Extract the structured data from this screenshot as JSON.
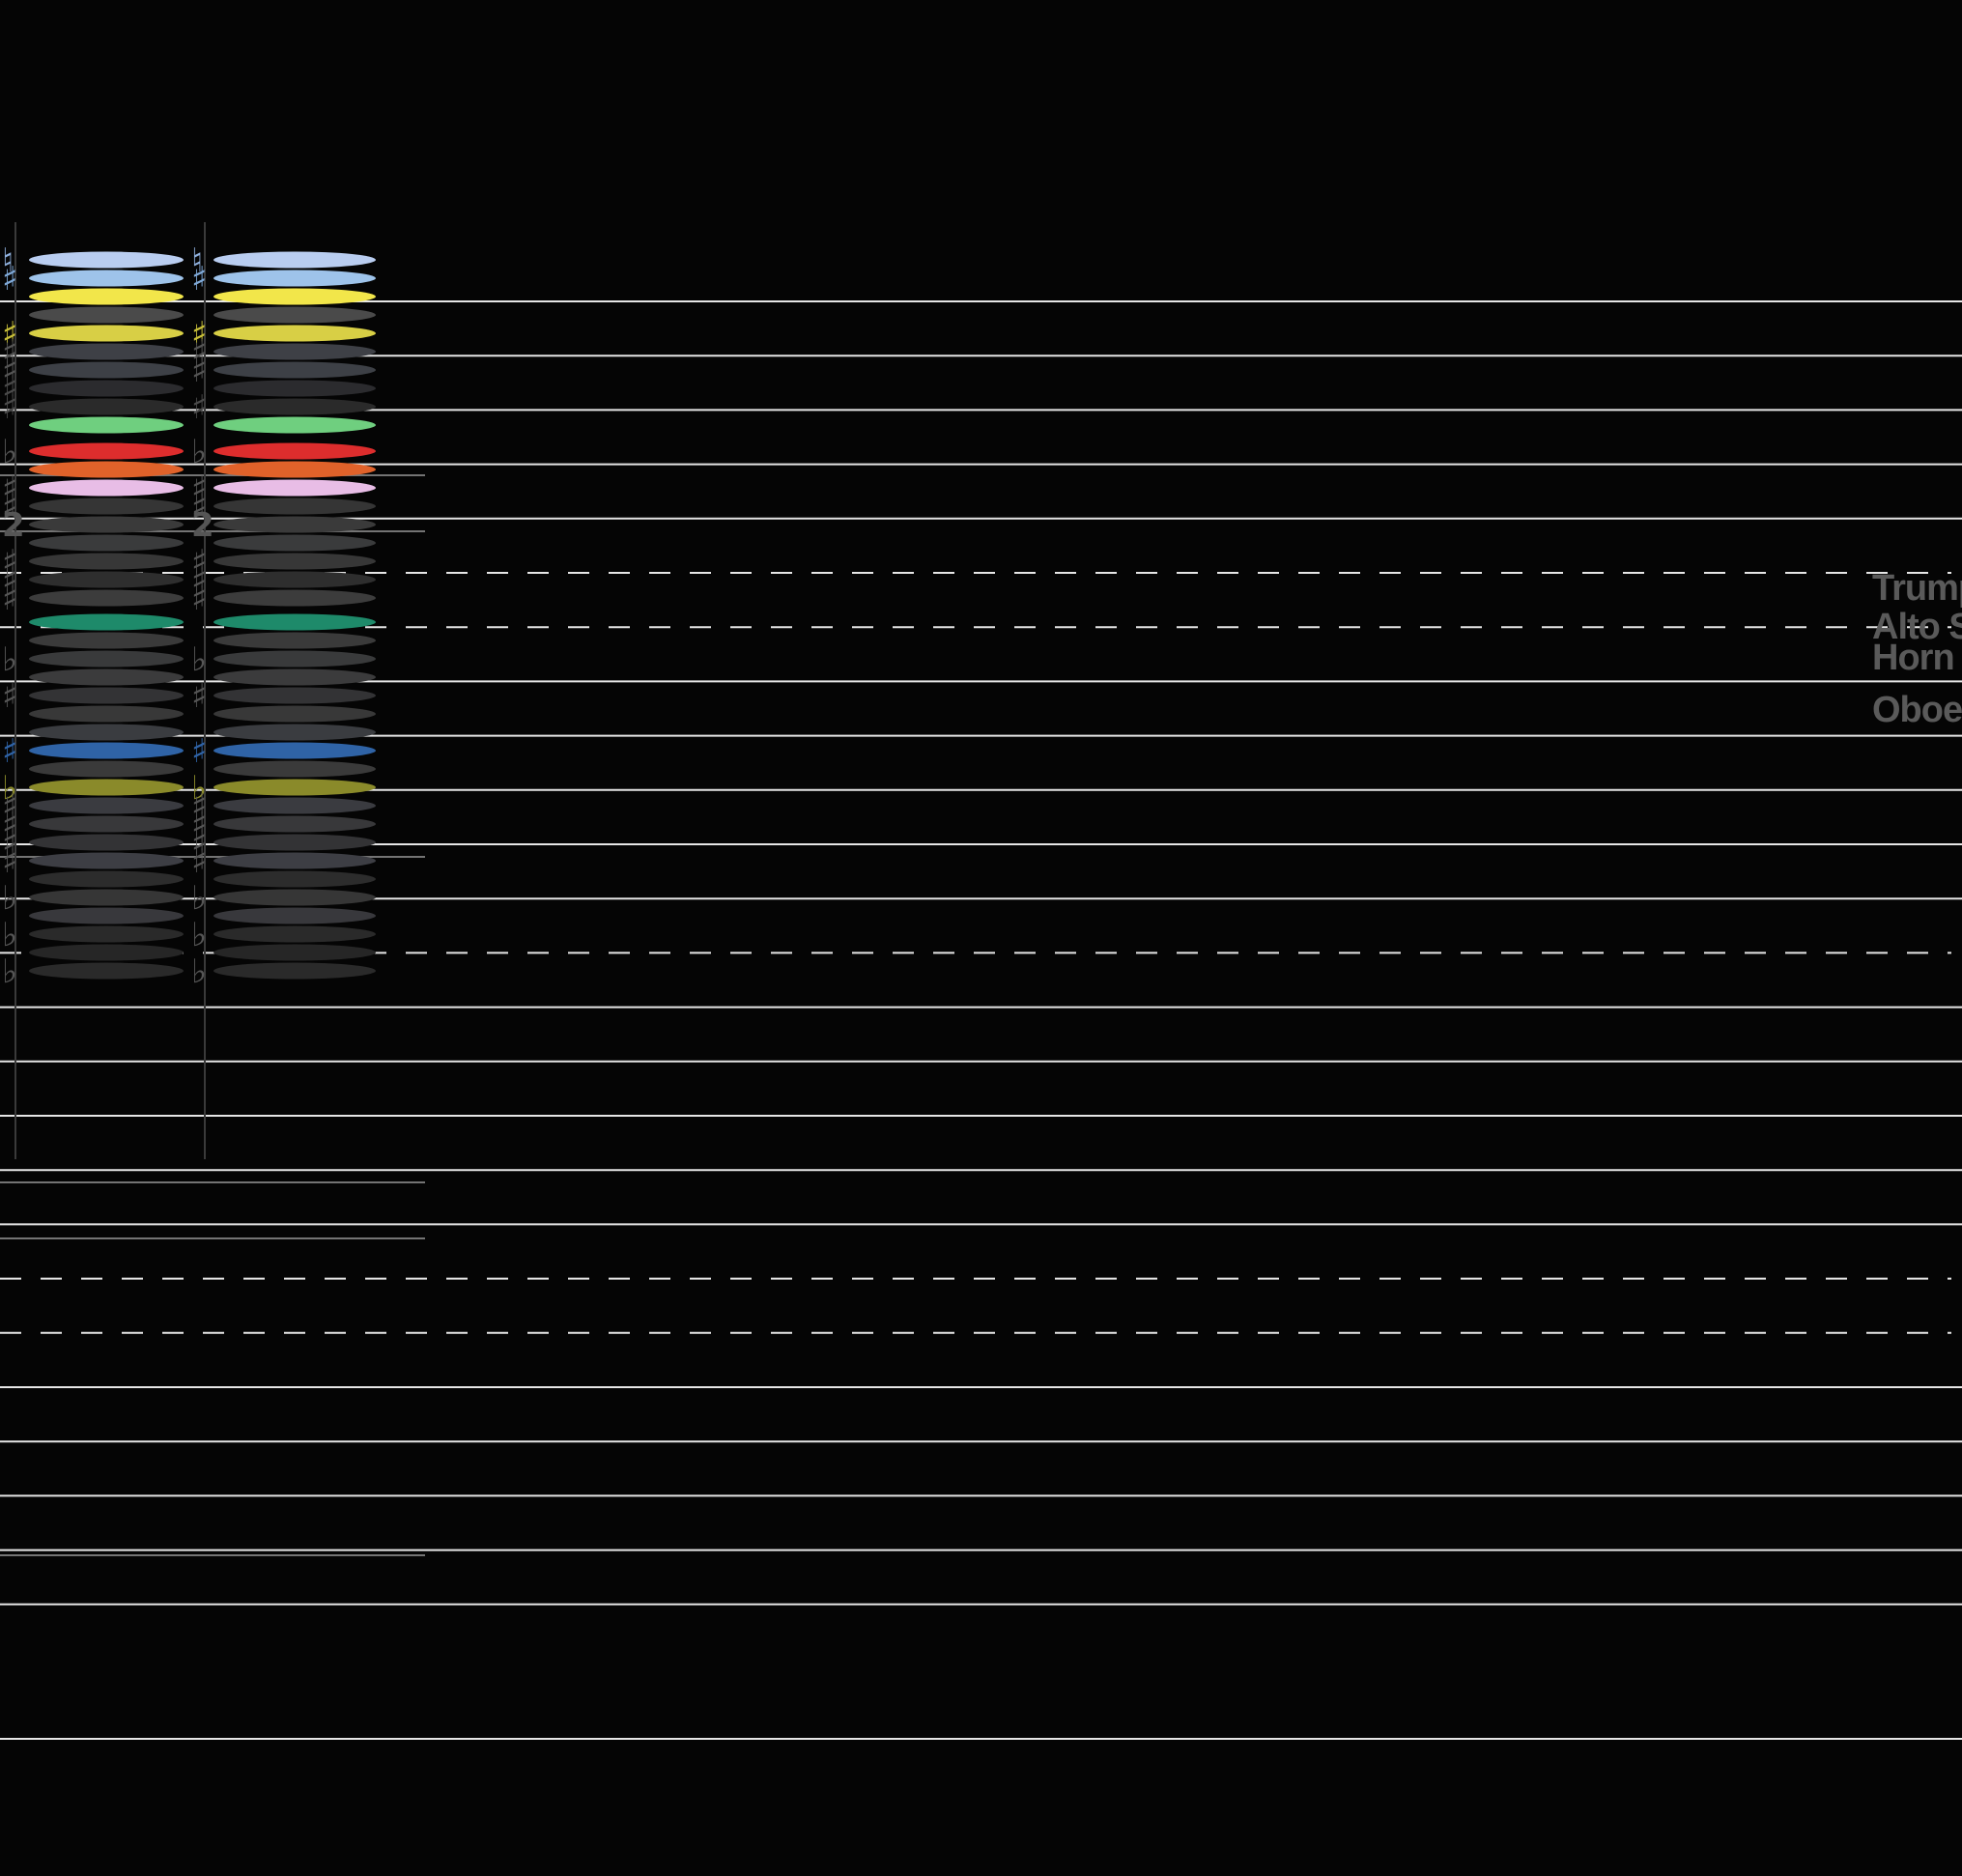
{
  "score": {
    "background": "#050505",
    "line_color": "#e6e6e6",
    "staff": [
      {
        "pitch": "G5",
        "style": "solid"
      },
      {
        "pitch": "E5",
        "style": "solid"
      },
      {
        "pitch": "C5",
        "style": "solid"
      },
      {
        "pitch": "A4",
        "style": "solid"
      },
      {
        "pitch": "F4",
        "style": "solid"
      },
      {
        "pitch": "D4",
        "style": "dashed"
      },
      {
        "pitch": "B3",
        "style": "dashed"
      },
      {
        "pitch": "G3",
        "style": "solid"
      },
      {
        "pitch": "E3",
        "style": "solid"
      },
      {
        "pitch": "C3",
        "style": "solid"
      },
      {
        "pitch": "A2",
        "style": "solid"
      },
      {
        "pitch": "F2",
        "style": "solid"
      },
      {
        "pitch": "D2",
        "style": "dashed"
      },
      {
        "pitch": "B1",
        "style": "solid"
      },
      {
        "pitch": "G1",
        "style": "solid"
      },
      {
        "pitch": "E1",
        "style": "solid"
      },
      {
        "pitch": "C1",
        "style": "solid"
      },
      {
        "pitch": "A0",
        "style": "solid"
      },
      {
        "pitch": "F0",
        "style": "dashed"
      },
      {
        "pitch": "D0",
        "style": "dashed"
      },
      {
        "pitch": "B-1",
        "style": "solid"
      },
      {
        "pitch": "G-1",
        "style": "solid"
      },
      {
        "pitch": "E-1",
        "style": "solid"
      },
      {
        "pitch": "C-1",
        "style": "solid"
      },
      {
        "pitch": "A-2",
        "style": "solid"
      },
      {
        "pitch": "F-3",
        "style": "solid"
      }
    ],
    "chords": [
      {
        "name": "chord-1",
        "notes": [
          {
            "color": "#b9cdf0",
            "acc": "♮",
            "accColor": "#8fb0dd"
          },
          {
            "color": "#9ec3ea",
            "acc": "♯",
            "accColor": "#7fa9d8"
          },
          {
            "color": "#f2e64a",
            "acc": "",
            "accColor": ""
          },
          {
            "color": "#4a4a4a",
            "acc": "",
            "accColor": ""
          },
          {
            "color": "#d8cf45",
            "acc": "♯",
            "accColor": "#c9c03a"
          },
          {
            "color": "#3e4046",
            "acc": "♯",
            "accColor": "#555"
          },
          {
            "color": "#3d4046",
            "acc": "♯",
            "accColor": "#555"
          },
          {
            "color": "#2b2b2e",
            "acc": "♯",
            "accColor": "#4a4a4a"
          },
          {
            "color": "#2a2a2a",
            "acc": "♯",
            "accColor": "#4a4a4a"
          },
          {
            "color": "#6fcf7f",
            "acc": "",
            "accColor": ""
          },
          {
            "color": "#dd2d2d",
            "acc": "♭",
            "accColor": "#555"
          },
          {
            "color": "#e0622a",
            "acc": "",
            "accColor": ""
          },
          {
            "color": "#e8bde6",
            "acc": "♯",
            "accColor": "#555"
          },
          {
            "color": "#353535",
            "acc": "♯",
            "accColor": "#555"
          },
          {
            "color": "#3a3a3a",
            "acc": "2",
            "accColor": "#555"
          },
          {
            "color": "#3a3b3c",
            "acc": "",
            "accColor": ""
          },
          {
            "color": "#373737",
            "acc": "♯",
            "accColor": "#555"
          },
          {
            "color": "#2e2e2e",
            "acc": "♯",
            "accColor": "#555"
          },
          {
            "color": "#3c3c3c",
            "acc": "♯",
            "accColor": "#555"
          },
          {
            "color": "#1e8a6a",
            "acc": "",
            "accColor": ""
          },
          {
            "color": "#3a3a3a",
            "acc": "",
            "accColor": ""
          },
          {
            "color": "#393a3b",
            "acc": "♭",
            "accColor": "#555"
          },
          {
            "color": "#3b3b3c",
            "acc": "",
            "accColor": ""
          },
          {
            "color": "#333335",
            "acc": "♯",
            "accColor": "#555"
          },
          {
            "color": "#383838",
            "acc": "",
            "accColor": ""
          },
          {
            "color": "#3a3c40",
            "acc": "",
            "accColor": ""
          },
          {
            "color": "#2f63a6",
            "acc": "♯",
            "accColor": "#2f63a6"
          },
          {
            "color": "#3a3a3a",
            "acc": "",
            "accColor": ""
          },
          {
            "color": "#8a8a2a",
            "acc": "♭",
            "accColor": "#8a8a2a"
          },
          {
            "color": "#3a3b40",
            "acc": "♯",
            "accColor": "#555"
          },
          {
            "color": "#38383a",
            "acc": "♯",
            "accColor": "#555"
          },
          {
            "color": "#333335",
            "acc": "♯",
            "accColor": "#555"
          },
          {
            "color": "#3d3e44",
            "acc": "♯",
            "accColor": "#555"
          },
          {
            "color": "#2c2c2c",
            "acc": "",
            "accColor": ""
          },
          {
            "color": "#363636",
            "acc": "♭",
            "accColor": "#555"
          },
          {
            "color": "#38383c",
            "acc": "",
            "accColor": ""
          },
          {
            "color": "#2a2a2a",
            "acc": "♭",
            "accColor": "#555"
          },
          {
            "color": "#262626",
            "acc": "",
            "accColor": ""
          },
          {
            "color": "#2a2a2a",
            "acc": "♭",
            "accColor": "#555"
          }
        ]
      },
      {
        "name": "chord-2",
        "notes": [
          {
            "color": "#b9cdf0",
            "acc": "♮",
            "accColor": "#8fb0dd"
          },
          {
            "color": "#9ec3ea",
            "acc": "♯",
            "accColor": "#7fa9d8"
          },
          {
            "color": "#f2e64a",
            "acc": "",
            "accColor": ""
          },
          {
            "color": "#4a4a4a",
            "acc": "",
            "accColor": ""
          },
          {
            "color": "#d8cf45",
            "acc": "♯",
            "accColor": "#c9c03a"
          },
          {
            "color": "#3e4046",
            "acc": "♯",
            "accColor": "#555"
          },
          {
            "color": "#3d4046",
            "acc": "♯",
            "accColor": "#555"
          },
          {
            "color": "#2b2b2e",
            "acc": "",
            "accColor": ""
          },
          {
            "color": "#2a2a2a",
            "acc": "♯",
            "accColor": "#4a4a4a"
          },
          {
            "color": "#6fcf7f",
            "acc": "",
            "accColor": ""
          },
          {
            "color": "#dd2d2d",
            "acc": "♭",
            "accColor": "#555"
          },
          {
            "color": "#e0622a",
            "acc": "",
            "accColor": ""
          },
          {
            "color": "#e8bde6",
            "acc": "♯",
            "accColor": "#555"
          },
          {
            "color": "#353535",
            "acc": "♯",
            "accColor": "#555"
          },
          {
            "color": "#3a3a3a",
            "acc": "2",
            "accColor": "#555"
          },
          {
            "color": "#3a3b3c",
            "acc": "",
            "accColor": ""
          },
          {
            "color": "#373737",
            "acc": "♯",
            "accColor": "#555"
          },
          {
            "color": "#2e2e2e",
            "acc": "♯",
            "accColor": "#555"
          },
          {
            "color": "#3c3c3c",
            "acc": "♯",
            "accColor": "#555"
          },
          {
            "color": "#1e8a6a",
            "acc": "",
            "accColor": ""
          },
          {
            "color": "#3a3a3a",
            "acc": "",
            "accColor": ""
          },
          {
            "color": "#393a3b",
            "acc": "♭",
            "accColor": "#555"
          },
          {
            "color": "#3b3b3c",
            "acc": "",
            "accColor": ""
          },
          {
            "color": "#333335",
            "acc": "♯",
            "accColor": "#555"
          },
          {
            "color": "#383838",
            "acc": "",
            "accColor": ""
          },
          {
            "color": "#3a3c40",
            "acc": "",
            "accColor": ""
          },
          {
            "color": "#2f63a6",
            "acc": "♯",
            "accColor": "#2f63a6"
          },
          {
            "color": "#3a3a3a",
            "acc": "",
            "accColor": ""
          },
          {
            "color": "#8a8a2a",
            "acc": "♭",
            "accColor": "#8a8a2a"
          },
          {
            "color": "#3a3b40",
            "acc": "♯",
            "accColor": "#555"
          },
          {
            "color": "#38383a",
            "acc": "♯",
            "accColor": "#555"
          },
          {
            "color": "#333335",
            "acc": "♯",
            "accColor": "#555"
          },
          {
            "color": "#3d3e44",
            "acc": "♯",
            "accColor": "#555"
          },
          {
            "color": "#2c2c2c",
            "acc": "",
            "accColor": ""
          },
          {
            "color": "#363636",
            "acc": "♭",
            "accColor": "#555"
          },
          {
            "color": "#38383c",
            "acc": "",
            "accColor": ""
          },
          {
            "color": "#2a2a2a",
            "acc": "♭",
            "accColor": "#555"
          },
          {
            "color": "#262626",
            "acc": "",
            "accColor": ""
          },
          {
            "color": "#2a2a2a",
            "acc": "♭",
            "accColor": "#555"
          }
        ]
      }
    ],
    "labels": [
      "Trump",
      "Alto S",
      "Horn",
      "Oboe"
    ]
  }
}
